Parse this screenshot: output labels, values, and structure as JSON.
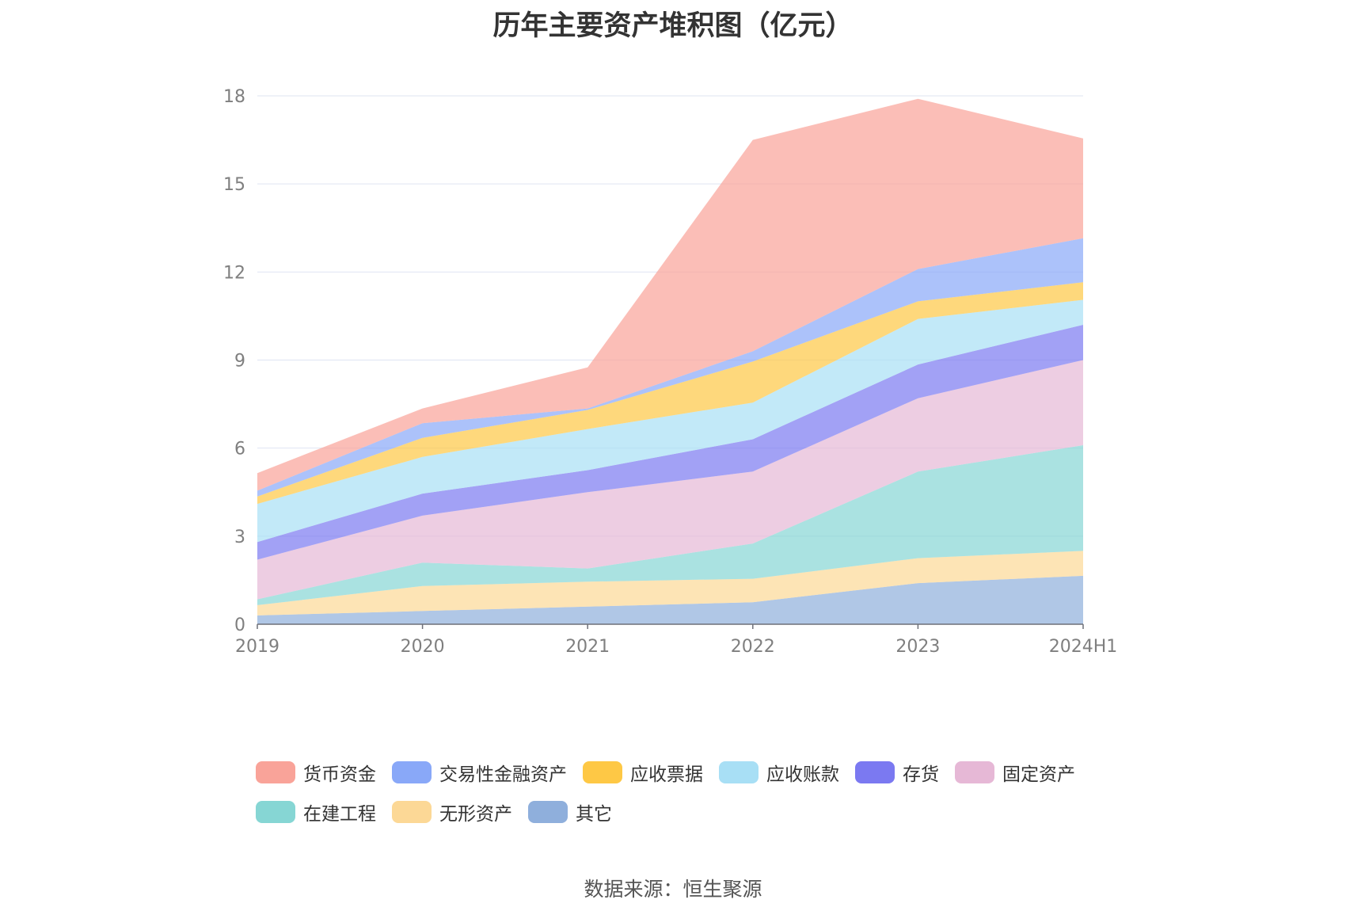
{
  "chart_data": {
    "type": "area",
    "stacked": true,
    "title": "历年主要资产堆积图（亿元）",
    "source": "数据来源：恒生聚源",
    "x": [
      "2019",
      "2020",
      "2021",
      "2022",
      "2023",
      "2024H1"
    ],
    "ylim": [
      0,
      18
    ],
    "yticks": [
      "0",
      "3",
      "6",
      "9",
      "12",
      "15",
      "18"
    ],
    "grid": true,
    "legend_position": "bottom",
    "series": [
      {
        "name": "其它",
        "color": "#8fafdc",
        "values": [
          0.3,
          0.45,
          0.6,
          0.75,
          1.4,
          1.65
        ]
      },
      {
        "name": "无形资产",
        "color": "#fcd896",
        "values": [
          0.35,
          0.85,
          0.85,
          0.8,
          0.85,
          0.85
        ]
      },
      {
        "name": "在建工程",
        "color": "#86d6d4",
        "values": [
          0.2,
          0.8,
          0.45,
          1.2,
          2.95,
          3.6
        ]
      },
      {
        "name": "固定资产",
        "color": "#e6b8d6",
        "values": [
          1.35,
          1.6,
          2.6,
          2.45,
          2.5,
          2.9
        ]
      },
      {
        "name": "存货",
        "color": "#7b79f1",
        "values": [
          0.6,
          0.75,
          0.75,
          1.1,
          1.15,
          1.2
        ]
      },
      {
        "name": "应收账款",
        "color": "#a8dff5",
        "values": [
          1.3,
          1.25,
          1.4,
          1.25,
          1.55,
          0.85
        ]
      },
      {
        "name": "应收票据",
        "color": "#fec845",
        "values": [
          0.25,
          0.65,
          0.65,
          1.4,
          0.6,
          0.6
        ]
      },
      {
        "name": "交易性金融资产",
        "color": "#89a8f8",
        "values": [
          0.2,
          0.5,
          0.05,
          0.35,
          1.1,
          1.5
        ]
      },
      {
        "name": "货币资金",
        "color": "#f9a399",
        "values": [
          0.6,
          0.5,
          1.4,
          7.2,
          5.8,
          3.4
        ]
      }
    ],
    "legend_order": [
      "货币资金",
      "交易性金融资产",
      "应收票据",
      "应收账款",
      "存货",
      "固定资产",
      "在建工程",
      "无形资产",
      "其它"
    ]
  }
}
